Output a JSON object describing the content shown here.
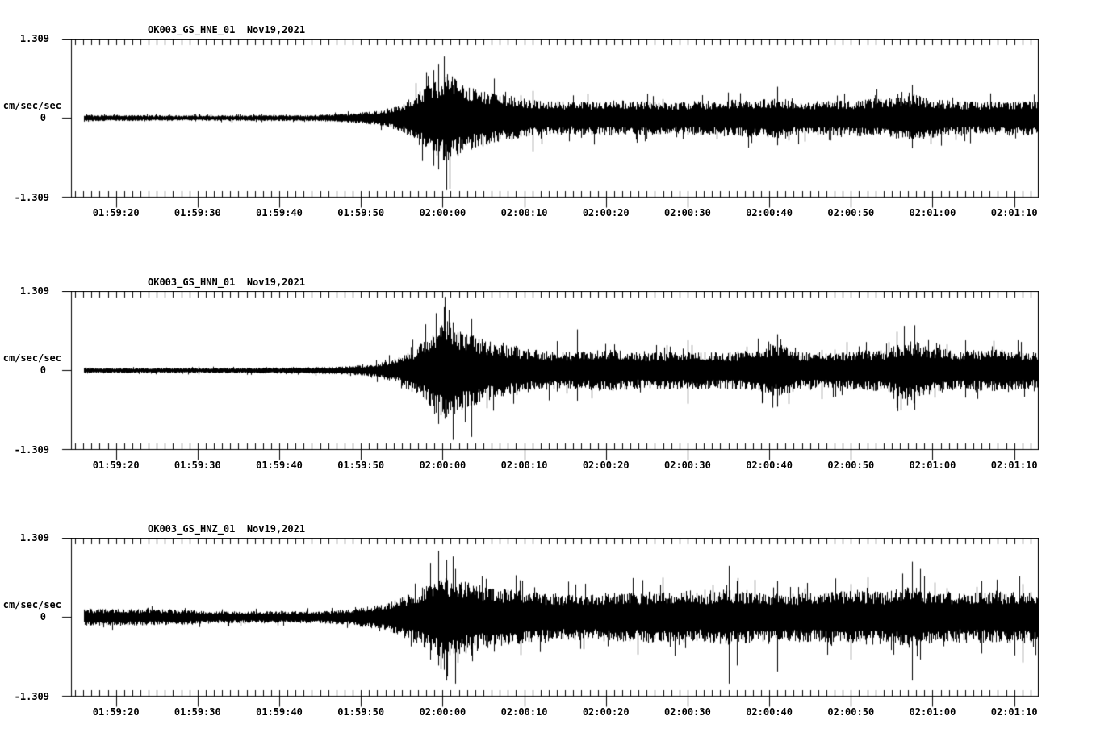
{
  "colors": {
    "background": "#ffffff",
    "trace": "#000000"
  },
  "y_axis": {
    "unit": "cm/sec/sec",
    "max_label": "1.309",
    "zero_label": "0",
    "min_label": "-1.309"
  },
  "chart_data": [
    {
      "type": "line",
      "title": "OK003_GS_HNE_01  Nov19,2021",
      "station": "OK003",
      "network": "GS",
      "channel": "HNE",
      "location": "01",
      "date": "Nov19,2021",
      "ylabel": "cm/sec/sec",
      "ylim": [
        -1.309,
        1.309
      ],
      "ytick_labels": [
        "1.309",
        "0",
        "-1.309"
      ],
      "xtick_labels": [
        "01:59:20",
        "01:59:30",
        "01:59:40",
        "01:59:50",
        "02:00:00",
        "02:00:10",
        "02:00:20",
        "02:00:30",
        "02:00:40",
        "02:00:50",
        "02:01:00",
        "02:01:10"
      ],
      "x_range_s": [
        14.5,
        133
      ],
      "x_major_interval_s": 10,
      "x_minor_interval_s": 1,
      "signal_start_s": 16,
      "grid": false,
      "envelope": [
        [
          16,
          0.07
        ],
        [
          17,
          0.05
        ],
        [
          30,
          0.045
        ],
        [
          44,
          0.05
        ],
        [
          48,
          0.07
        ],
        [
          52,
          0.12
        ],
        [
          55,
          0.22
        ],
        [
          57,
          0.45
        ],
        [
          59,
          0.6
        ],
        [
          60.5,
          0.78
        ],
        [
          62,
          0.62
        ],
        [
          64,
          0.5
        ],
        [
          67,
          0.4
        ],
        [
          71,
          0.3
        ],
        [
          76,
          0.27
        ],
        [
          82,
          0.3
        ],
        [
          88,
          0.27
        ],
        [
          94,
          0.3
        ],
        [
          101,
          0.33
        ],
        [
          104,
          0.28
        ],
        [
          110,
          0.3
        ],
        [
          115,
          0.33
        ],
        [
          118,
          0.38
        ],
        [
          121,
          0.3
        ],
        [
          126,
          0.27
        ],
        [
          133,
          0.3
        ]
      ],
      "spikes": [
        [
          59.5,
          0.9,
          -0.85
        ],
        [
          60.2,
          1.02,
          -0.7
        ],
        [
          60.9,
          0.55,
          -1.17
        ],
        [
          71,
          0.45,
          -0.55
        ],
        [
          101,
          0.52,
          -0.45
        ],
        [
          117.5,
          0.55,
          -0.5
        ]
      ]
    },
    {
      "type": "line",
      "title": "OK003_GS_HNN_01  Nov19,2021",
      "station": "OK003",
      "network": "GS",
      "channel": "HNN",
      "location": "01",
      "date": "Nov19,2021",
      "ylabel": "cm/sec/sec",
      "ylim": [
        -1.309,
        1.309
      ],
      "ytick_labels": [
        "1.309",
        "0",
        "-1.309"
      ],
      "xtick_labels": [
        "01:59:20",
        "01:59:30",
        "01:59:40",
        "01:59:50",
        "02:00:00",
        "02:00:10",
        "02:00:20",
        "02:00:30",
        "02:00:40",
        "02:00:50",
        "02:01:00",
        "02:01:10"
      ],
      "x_range_s": [
        14.5,
        133
      ],
      "x_major_interval_s": 10,
      "x_minor_interval_s": 1,
      "signal_start_s": 16,
      "grid": false,
      "envelope": [
        [
          16,
          0.06
        ],
        [
          17,
          0.04
        ],
        [
          35,
          0.045
        ],
        [
          47,
          0.06
        ],
        [
          51,
          0.1
        ],
        [
          54,
          0.18
        ],
        [
          57,
          0.42
        ],
        [
          59,
          0.65
        ],
        [
          60.5,
          0.85
        ],
        [
          62,
          0.68
        ],
        [
          65,
          0.52
        ],
        [
          68,
          0.42
        ],
        [
          72,
          0.33
        ],
        [
          76,
          0.3
        ],
        [
          80,
          0.36
        ],
        [
          84,
          0.3
        ],
        [
          89,
          0.32
        ],
        [
          94,
          0.3
        ],
        [
          99,
          0.35
        ],
        [
          101,
          0.45
        ],
        [
          104,
          0.3
        ],
        [
          109,
          0.32
        ],
        [
          114,
          0.35
        ],
        [
          117,
          0.52
        ],
        [
          119,
          0.42
        ],
        [
          123,
          0.32
        ],
        [
          128,
          0.35
        ],
        [
          133,
          0.3
        ]
      ],
      "spikes": [
        [
          59.2,
          0.95,
          -0.7
        ],
        [
          60.3,
          1.22,
          -0.8
        ],
        [
          61.2,
          0.8,
          -1.15
        ],
        [
          63.5,
          0.85,
          -1.1
        ],
        [
          76.5,
          0.68,
          -0.5
        ],
        [
          90,
          0.5,
          -0.55
        ],
        [
          101,
          0.6,
          -0.6
        ],
        [
          117.8,
          0.75,
          -0.65
        ],
        [
          124,
          0.5,
          -0.45
        ]
      ]
    },
    {
      "type": "line",
      "title": "OK003_GS_HNZ_01  Nov19,2021",
      "station": "OK003",
      "network": "GS",
      "channel": "HNZ",
      "location": "01",
      "date": "Nov19,2021",
      "ylabel": "cm/sec/sec",
      "ylim": [
        -1.309,
        1.309
      ],
      "ytick_labels": [
        "1.309",
        "0",
        "-1.309"
      ],
      "xtick_labels": [
        "01:59:20",
        "01:59:30",
        "01:59:40",
        "01:59:50",
        "02:00:00",
        "02:00:10",
        "02:00:20",
        "02:00:30",
        "02:00:40",
        "02:00:50",
        "02:01:00",
        "02:01:10"
      ],
      "x_range_s": [
        14.5,
        133
      ],
      "x_major_interval_s": 10,
      "x_minor_interval_s": 1,
      "signal_start_s": 16,
      "grid": false,
      "envelope": [
        [
          16,
          0.14
        ],
        [
          29,
          0.13
        ],
        [
          31,
          0.1
        ],
        [
          45,
          0.1
        ],
        [
          49,
          0.14
        ],
        [
          53,
          0.22
        ],
        [
          56,
          0.38
        ],
        [
          58,
          0.55
        ],
        [
          60,
          0.7
        ],
        [
          62,
          0.62
        ],
        [
          64,
          0.55
        ],
        [
          67,
          0.48
        ],
        [
          71,
          0.42
        ],
        [
          75,
          0.38
        ],
        [
          79,
          0.4
        ],
        [
          83,
          0.42
        ],
        [
          87,
          0.44
        ],
        [
          91,
          0.4
        ],
        [
          95,
          0.46
        ],
        [
          98,
          0.42
        ],
        [
          102,
          0.4
        ],
        [
          106,
          0.42
        ],
        [
          110,
          0.44
        ],
        [
          114,
          0.42
        ],
        [
          117,
          0.52
        ],
        [
          119,
          0.46
        ],
        [
          123,
          0.4
        ],
        [
          127,
          0.42
        ],
        [
          131,
          0.44
        ],
        [
          133,
          0.42
        ]
      ],
      "spikes": [
        [
          58.5,
          0.9,
          -0.7
        ],
        [
          59.5,
          1.1,
          -0.8
        ],
        [
          60.5,
          0.95,
          -1.05
        ],
        [
          61.5,
          0.8,
          -1.1
        ],
        [
          95,
          0.85,
          -1.1
        ],
        [
          96,
          0.6,
          -0.8
        ],
        [
          101,
          0.6,
          -0.9
        ],
        [
          110,
          0.55,
          -0.7
        ],
        [
          117.5,
          0.92,
          -1.05
        ],
        [
          118.5,
          0.8,
          -0.7
        ],
        [
          126,
          0.6,
          -0.6
        ],
        [
          131,
          0.55,
          -0.75
        ]
      ]
    }
  ]
}
